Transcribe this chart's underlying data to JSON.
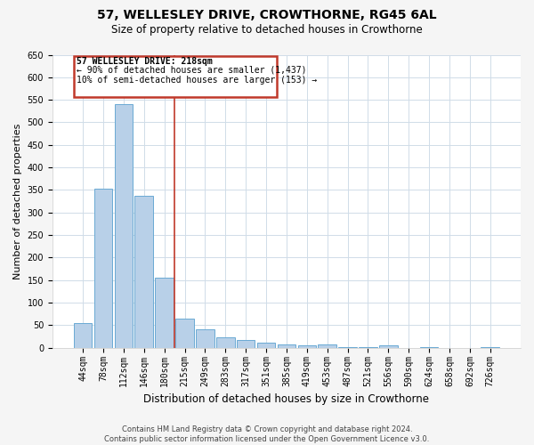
{
  "title": "57, WELLESLEY DRIVE, CROWTHORNE, RG45 6AL",
  "subtitle": "Size of property relative to detached houses in Crowthorne",
  "xlabel": "Distribution of detached houses by size in Crowthorne",
  "ylabel": "Number of detached properties",
  "bar_labels": [
    "44sqm",
    "78sqm",
    "112sqm",
    "146sqm",
    "180sqm",
    "215sqm",
    "249sqm",
    "283sqm",
    "317sqm",
    "351sqm",
    "385sqm",
    "419sqm",
    "453sqm",
    "487sqm",
    "521sqm",
    "556sqm",
    "590sqm",
    "624sqm",
    "658sqm",
    "692sqm",
    "726sqm"
  ],
  "bar_values": [
    55,
    352,
    540,
    337,
    155,
    65,
    42,
    23,
    18,
    12,
    7,
    5,
    8,
    2,
    1,
    5,
    0,
    1,
    0,
    0,
    2
  ],
  "bar_color": "#b8d0e8",
  "bar_edge_color": "#6aaad4",
  "vline_color": "#c0392b",
  "vline_x_index": 4.5,
  "annotation_title": "57 WELLESLEY DRIVE: 218sqm",
  "annotation_line1": "← 90% of detached houses are smaller (1,437)",
  "annotation_line2": "10% of semi-detached houses are larger (153) →",
  "annotation_box_color": "#c0392b",
  "ylim": [
    0,
    650
  ],
  "yticks": [
    0,
    50,
    100,
    150,
    200,
    250,
    300,
    350,
    400,
    450,
    500,
    550,
    600,
    650
  ],
  "footer_line1": "Contains HM Land Registry data © Crown copyright and database right 2024.",
  "footer_line2": "Contains public sector information licensed under the Open Government Licence v3.0.",
  "bg_color": "#f5f5f5",
  "plot_bg_color": "#ffffff",
  "grid_color": "#d0dce8",
  "title_fontsize": 10,
  "subtitle_fontsize": 8.5,
  "ylabel_fontsize": 8,
  "xlabel_fontsize": 8.5,
  "tick_fontsize": 7,
  "footer_fontsize": 6
}
